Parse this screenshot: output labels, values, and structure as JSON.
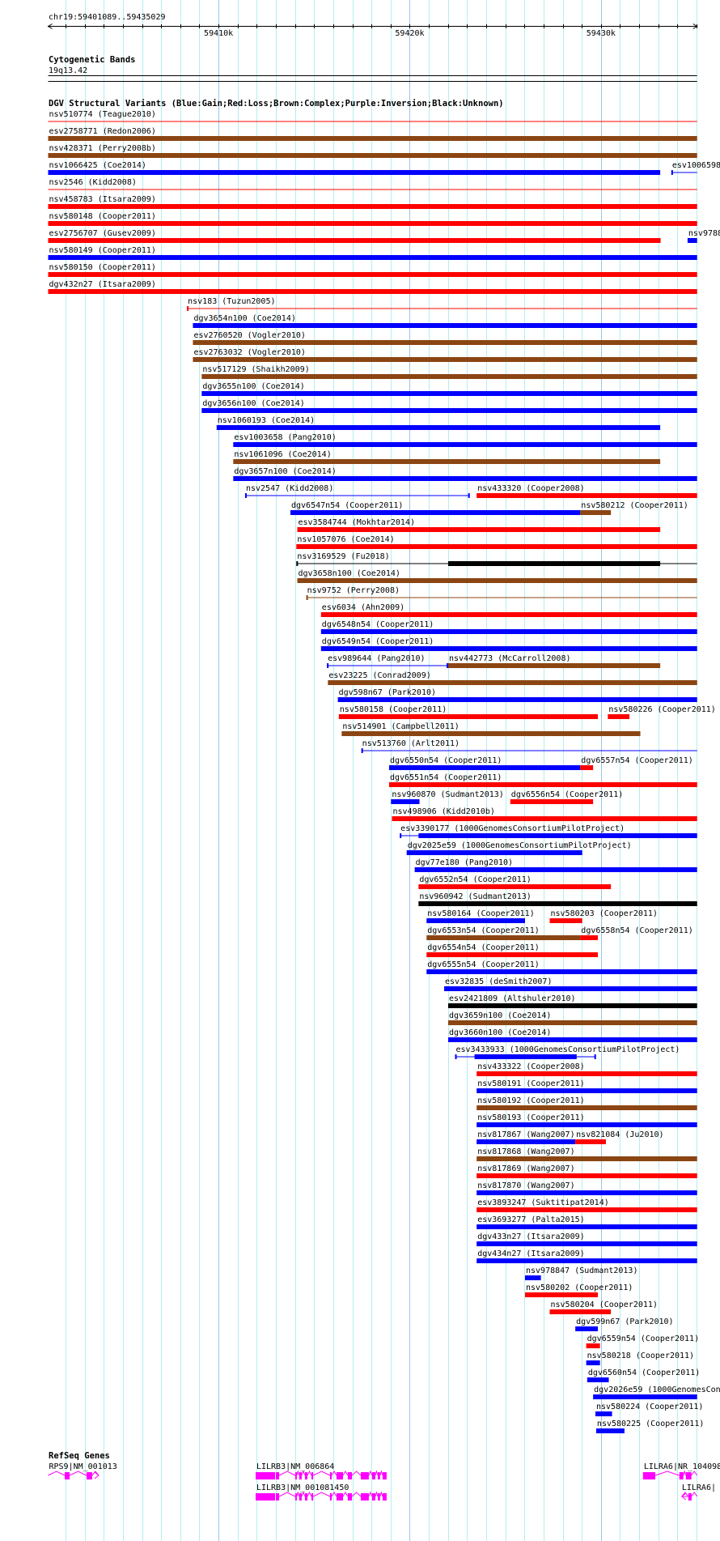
{
  "palette": {
    "blue": "#0000FF",
    "red": "#FF0000",
    "brown": "#8B4513",
    "black": "#000000",
    "magenta": "#FF00FF",
    "grid": "#B4EEF0",
    "grid_major": "#96C6E8"
  },
  "ruler": {
    "location": "chr19:59401089..59435029",
    "start_kb": 59401.089,
    "end_kb": 59435.029,
    "major_labels": [
      {
        "kb": 59410,
        "label": "59410k"
      },
      {
        "kb": 59420,
        "label": "59420k"
      },
      {
        "kb": 59430,
        "label": "59430k"
      }
    ]
  },
  "cytobands": {
    "title": "Cytogenetic Bands",
    "band": "19q13.42"
  },
  "dgv": {
    "title": "DGV Structural Variants (Blue:Gain;Red:Loss;Brown:Complex;Purple:Inversion;Black:Unknown)",
    "rows": [
      [
        {
          "label": "nsv510774 (Teague2010)",
          "c": "red",
          "s": 59400,
          "e": 59436,
          "thin": true
        }
      ],
      [
        {
          "label": "esv2758771 (Redon2006)",
          "c": "brown",
          "s": 59400,
          "e": 59436
        }
      ],
      [
        {
          "label": "nsv428371 (Perry2008b)",
          "c": "brown",
          "s": 59400,
          "e": 59436
        }
      ],
      [
        {
          "label": "nsv1066425 (Coe2014)",
          "c": "blue",
          "s": 59400,
          "e": 59433.1
        },
        {
          "label": "esv1006598",
          "c": "blue",
          "s": 59433.68,
          "e": 59436,
          "thin": true
        }
      ],
      [
        {
          "label": "nsv2546 (Kidd2008)",
          "c": "red",
          "s": 59400,
          "e": 59436,
          "thin": true
        }
      ],
      [
        {
          "label": "nsv458783 (Itsara2009)",
          "c": "red",
          "s": 59400,
          "e": 59436
        }
      ],
      [
        {
          "label": "nsv580148 (Cooper2011)",
          "c": "red",
          "s": 59400,
          "e": 59436
        }
      ],
      [
        {
          "label": "esv2756707 (Gusev2009)",
          "c": "red",
          "s": 59400,
          "e": 59433.12
        },
        {
          "label": "nsv9788",
          "c": "blue",
          "s": 59434.53,
          "e": 59436
        }
      ],
      [
        {
          "label": "nsv580149 (Cooper2011)",
          "c": "blue",
          "s": 59400,
          "e": 59436
        }
      ],
      [
        {
          "label": "nsv580150 (Cooper2011)",
          "c": "red",
          "s": 59400,
          "e": 59436
        }
      ],
      [
        {
          "label": "dgv432n27 (Itsara2009)",
          "c": "red",
          "s": 59400,
          "e": 59436
        }
      ],
      [
        {
          "label": "nsv183 (Tuzun2005)",
          "c": "red",
          "s": 59408.35,
          "e": 59436,
          "thin": true
        }
      ],
      [
        {
          "label": "dgv3654n100 (Coe2014)",
          "c": "blue",
          "s": 59408.66,
          "e": 59436
        }
      ],
      [
        {
          "label": "esv2760520 (Vogler2010)",
          "c": "brown",
          "s": 59408.66,
          "e": 59436
        }
      ],
      [
        {
          "label": "esv2763032 (Vogler2010)",
          "c": "brown",
          "s": 59408.66,
          "e": 59436
        }
      ],
      [
        {
          "label": "nsv517129 (Shaikh2009)",
          "c": "brown",
          "s": 59409.12,
          "e": 59436
        }
      ],
      [
        {
          "label": "dgv3655n100 (Coe2014)",
          "c": "blue",
          "s": 59409.12,
          "e": 59436
        }
      ],
      [
        {
          "label": "dgv3656n100 (Coe2014)",
          "c": "blue",
          "s": 59409.12,
          "e": 59436
        }
      ],
      [
        {
          "label": "nsv1060193 (Coe2014)",
          "c": "blue",
          "s": 59409.9,
          "e": 59433.1
        }
      ],
      [
        {
          "label": "esv1003658 (Pang2010)",
          "c": "blue",
          "s": 59410.77,
          "e": 59436
        }
      ],
      [
        {
          "label": "nsv1061096 (Coe2014)",
          "c": "brown",
          "s": 59410.77,
          "e": 59433.1
        }
      ],
      [
        {
          "label": "dgv3657n100 (Coe2014)",
          "c": "blue",
          "s": 59410.77,
          "e": 59436
        }
      ],
      [
        {
          "label": "nsv2547 (Kidd2008)",
          "c": "blue",
          "s": 59411.39,
          "e": 59423.14,
          "thin": true
        },
        {
          "label": "nsv433320 (Cooper2008)",
          "c": "red",
          "s": 59423.5,
          "e": 59436
        }
      ],
      [
        {
          "label": "dgv6547n54 (Cooper2011)",
          "c": "blue",
          "s": 59413.76,
          "e": 59428.92
        },
        {
          "label": "nsv580212 (Cooper2011)",
          "c": "brown",
          "s": 59428.92,
          "e": 59430.52
        }
      ],
      [
        {
          "label": "esv3584744 (Mokhtar2014)",
          "c": "red",
          "s": 59414.12,
          "e": 59433.1
        }
      ],
      [
        {
          "label": "nsv1057076 (Coe2014)",
          "c": "red",
          "s": 59414.07,
          "e": 59436
        }
      ],
      [
        {
          "label": "nsv3169529 (Fu2018)",
          "c": "black",
          "s": 59414.07,
          "e": 59436,
          "thin": true,
          "thick": [
            59422.01,
            59433.1
          ]
        }
      ],
      [
        {
          "label": "dgv3658n100 (Coe2014)",
          "c": "brown",
          "s": 59414.12,
          "e": 59436
        }
      ],
      [
        {
          "label": "nsv9752 (Perry2008)",
          "c": "brown",
          "s": 59414.59,
          "e": 59436,
          "thin": true
        }
      ],
      [
        {
          "label": "esv6034 (Ahn2009)",
          "c": "red",
          "s": 59415.36,
          "e": 59436
        }
      ],
      [
        {
          "label": "dgv6548n54 (Cooper2011)",
          "c": "blue",
          "s": 59415.36,
          "e": 59436
        }
      ],
      [
        {
          "label": "dgv6549n54 (Cooper2011)",
          "c": "blue",
          "s": 59415.36,
          "e": 59436
        }
      ],
      [
        {
          "label": "esv989644 (Pang2010)",
          "c": "blue",
          "s": 59415.67,
          "e": 59422.01,
          "thin": true
        },
        {
          "label": "nsv442773 (McCarroll2008)",
          "c": "brown",
          "s": 59422.01,
          "e": 59433.1
        }
      ],
      [
        {
          "label": "esv23225 (Conrad2009)",
          "c": "brown",
          "s": 59415.72,
          "e": 59436
        }
      ],
      [
        {
          "label": "dgv598n67 (Park2010)",
          "c": "blue",
          "s": 59416.24,
          "e": 59436
        }
      ],
      [
        {
          "label": "nsv580158 (Cooper2011)",
          "c": "red",
          "s": 59416.29,
          "e": 59429.84
        },
        {
          "label": "nsv580226 (Cooper2011)",
          "c": "red",
          "s": 59430.36,
          "e": 59431.49
        }
      ],
      [
        {
          "label": "nsv514901 (Campbell2011)",
          "c": "brown",
          "s": 59416.44,
          "e": 59432.06
        }
      ],
      [
        {
          "label": "nsv513760 (Arlt2011)",
          "c": "blue",
          "s": 59417.47,
          "e": 59436,
          "thin": true
        }
      ],
      [
        {
          "label": "dgv6550n54 (Cooper2011)",
          "c": "blue",
          "s": 59418.92,
          "e": 59428.92
        },
        {
          "label": "dgv6557n54 (Cooper2011)",
          "c": "red",
          "s": 59428.92,
          "e": 59429.59
        }
      ],
      [
        {
          "label": "dgv6551n54 (Cooper2011)",
          "c": "red",
          "s": 59418.92,
          "e": 59436
        }
      ],
      [
        {
          "label": "nsv960870 (Sudmant2013)",
          "c": "blue",
          "s": 59419.02,
          "e": 59420.51
        },
        {
          "label": "dgv6556n54 (Cooper2011)",
          "c": "red",
          "s": 59425.26,
          "e": 59429.59
        }
      ],
      [
        {
          "label": "nsv498906 (Kidd2010b)",
          "c": "red",
          "s": 59419.07,
          "e": 59436
        }
      ],
      [
        {
          "label": "esv3390177 (1000GenomesConsortiumPilotProject)",
          "c": "blue",
          "s": 59419.48,
          "e": 59436,
          "thin": true,
          "thick": [
            59420.46,
            59436
          ]
        }
      ],
      [
        {
          "label": "dgv2025e59 (1000GenomesConsortiumPilotProject)",
          "c": "blue",
          "s": 59419.84,
          "e": 59429.02
        }
      ],
      [
        {
          "label": "dgv77e180 (Pang2010)",
          "c": "blue",
          "s": 59420.26,
          "e": 59436
        }
      ],
      [
        {
          "label": "dgv6552n54 (Cooper2011)",
          "c": "red",
          "s": 59420.46,
          "e": 59430.52
        }
      ],
      [
        {
          "label": "nsv960942 (Sudmant2013)",
          "c": "black",
          "s": 59420.46,
          "e": 59436
        }
      ],
      [
        {
          "label": "nsv580164 (Cooper2011)",
          "c": "blue",
          "s": 59420.88,
          "e": 59426.03
        },
        {
          "label": "nsv580203 (Cooper2011)",
          "c": "red",
          "s": 59427.32,
          "e": 59429.02
        }
      ],
      [
        {
          "label": "dgv6553n54 (Cooper2011)",
          "c": "brown",
          "s": 59420.88,
          "e": 59428.92
        },
        {
          "label": "dgv6558n54 (Cooper2011)",
          "c": "red",
          "s": 59428.92,
          "e": 59429.84
        }
      ],
      [
        {
          "label": "dgv6554n54 (Cooper2011)",
          "c": "red",
          "s": 59420.88,
          "e": 59429.84
        }
      ],
      [
        {
          "label": "dgv6555n54 (Cooper2011)",
          "c": "blue",
          "s": 59420.88,
          "e": 59436
        }
      ],
      [
        {
          "label": "esv32835 (deSmith2007)",
          "c": "blue",
          "s": 59421.8,
          "e": 59436
        }
      ],
      [
        {
          "label": "esv2421809 (Altshuler2010)",
          "c": "black",
          "s": 59422.01,
          "e": 59436
        }
      ],
      [
        {
          "label": "dgv3659n100 (Coe2014)",
          "c": "brown",
          "s": 59422.01,
          "e": 59436
        }
      ],
      [
        {
          "label": "dgv3660n100 (Coe2014)",
          "c": "blue",
          "s": 59422.01,
          "e": 59436
        }
      ],
      [
        {
          "label": "esv3433933 (1000GenomesConsortiumPilotProject)",
          "c": "blue",
          "s": 59422.37,
          "e": 59429.74,
          "thin": true,
          "thick": [
            59423.39,
            59428.73
          ]
        }
      ],
      [
        {
          "label": "nsv433322 (Cooper2008)",
          "c": "red",
          "s": 59423.5,
          "e": 59436
        }
      ],
      [
        {
          "label": "nsv580191 (Cooper2011)",
          "c": "blue",
          "s": 59423.5,
          "e": 59436
        }
      ],
      [
        {
          "label": "nsv580192 (Cooper2011)",
          "c": "brown",
          "s": 59423.5,
          "e": 59436
        }
      ],
      [
        {
          "label": "nsv580193 (Cooper2011)",
          "c": "blue",
          "s": 59423.5,
          "e": 59436
        }
      ],
      [
        {
          "label": "nsv817867 (Wang2007)",
          "c": "blue",
          "s": 59423.5,
          "e": 59428.66
        },
        {
          "label": "nsv821084 (Ju2010)",
          "c": "red",
          "s": 59428.66,
          "e": 59430.26
        }
      ],
      [
        {
          "label": "nsv817868 (Wang2007)",
          "c": "brown",
          "s": 59423.5,
          "e": 59436
        }
      ],
      [
        {
          "label": "nsv817869 (Wang2007)",
          "c": "red",
          "s": 59423.5,
          "e": 59436
        }
      ],
      [
        {
          "label": "nsv817870 (Wang2007)",
          "c": "blue",
          "s": 59423.5,
          "e": 59436
        }
      ],
      [
        {
          "label": "esv3893247 (Suktitipat2014)",
          "c": "red",
          "s": 59423.5,
          "e": 59436
        }
      ],
      [
        {
          "label": "esv3693277 (Palta2015)",
          "c": "blue",
          "s": 59423.5,
          "e": 59436
        }
      ],
      [
        {
          "label": "dgv433n27 (Itsara2009)",
          "c": "blue",
          "s": 59423.5,
          "e": 59436
        }
      ],
      [
        {
          "label": "dgv434n27 (Itsara2009)",
          "c": "blue",
          "s": 59423.5,
          "e": 59436
        }
      ],
      [
        {
          "label": "nsv978847 (Sudmant2013)",
          "c": "blue",
          "s": 59426.03,
          "e": 59426.86
        }
      ],
      [
        {
          "label": "nsv580202 (Cooper2011)",
          "c": "red",
          "s": 59426.03,
          "e": 59429.84
        }
      ],
      [
        {
          "label": "nsv580204 (Cooper2011)",
          "c": "red",
          "s": 59427.32,
          "e": 59430.52
        }
      ],
      [
        {
          "label": "dgv599n67 (Park2010)",
          "c": "blue",
          "s": 59428.66,
          "e": 59429.84
        }
      ],
      [
        {
          "label": "dgv6559n54 (Cooper2011)",
          "c": "red",
          "s": 59429.23,
          "e": 59429.95
        }
      ],
      [
        {
          "label": "nsv580218 (Cooper2011)",
          "c": "blue",
          "s": 59429.23,
          "e": 59429.95
        }
      ],
      [
        {
          "label": "dgv6560n54 (Cooper2011)",
          "c": "blue",
          "s": 59429.28,
          "e": 59430.41
        }
      ],
      [
        {
          "label": "dgv2026e59 (1000GenomesCons",
          "c": "blue",
          "s": 59429.59,
          "e": 59436
        }
      ],
      [
        {
          "label": "nsv580224 (Cooper2011)",
          "c": "blue",
          "s": 59429.71,
          "e": 59430.58
        }
      ],
      [
        {
          "label": "nsv580225 (Cooper2011)",
          "c": "blue",
          "s": 59429.75,
          "e": 59431.23
        }
      ]
    ]
  },
  "refseq": {
    "title": "RefSeq Genes",
    "genes": [
      {
        "label": "RPS9|NM_001013",
        "row": 0,
        "s": 59400.9,
        "e": 59403.73,
        "strand": "+",
        "exons": [
          [
            59401.96,
            59402.21
          ],
          [
            59403.1,
            59403.39
          ]
        ]
      },
      {
        "label": "LILRB3|NM_006864",
        "row": 0,
        "s": 59411.94,
        "e": 59418.79,
        "strand": "",
        "exons": [
          [
            59411.94,
            59412.96
          ],
          [
            59413.0,
            59413.17
          ],
          [
            59414.01,
            59414.09
          ],
          [
            59414.22,
            59414.35
          ],
          [
            59414.52,
            59414.65
          ],
          [
            59414.86,
            59414.95
          ],
          [
            59415.83,
            59415.92
          ],
          [
            59416.17,
            59416.51
          ],
          [
            59416.76,
            59416.98
          ],
          [
            59417.44,
            59417.86
          ],
          [
            59418.03,
            59418.2
          ],
          [
            59418.33,
            59418.45
          ],
          [
            59418.58,
            59418.79
          ]
        ]
      },
      {
        "label": "LILRB3|NM_001081450",
        "row": 1,
        "s": 59411.94,
        "e": 59418.79,
        "strand": "",
        "exons": [
          [
            59411.94,
            59412.96
          ],
          [
            59413.0,
            59413.17
          ],
          [
            59414.01,
            59414.09
          ],
          [
            59414.22,
            59414.35
          ],
          [
            59414.52,
            59414.65
          ],
          [
            59414.86,
            59414.95
          ],
          [
            59415.83,
            59415.92
          ],
          [
            59416.17,
            59416.51
          ],
          [
            59416.76,
            59416.98
          ],
          [
            59417.44,
            59417.86
          ],
          [
            59418.03,
            59418.2
          ],
          [
            59418.33,
            59418.45
          ],
          [
            59418.58,
            59418.79
          ]
        ]
      },
      {
        "label": "LILRA6|NR_104098",
        "row": 0,
        "s": 59432.2,
        "e": 59435.2,
        "strand": "",
        "exons": [
          [
            59432.2,
            59432.84
          ],
          [
            59434.1,
            59434.31
          ],
          [
            59434.44,
            59434.73
          ]
        ]
      },
      {
        "label": "LILRA6|",
        "row": 1,
        "s": 59434.23,
        "e": 59435.2,
        "strand": "-",
        "exons": [
          [
            59434.57,
            59434.74
          ]
        ]
      }
    ]
  }
}
